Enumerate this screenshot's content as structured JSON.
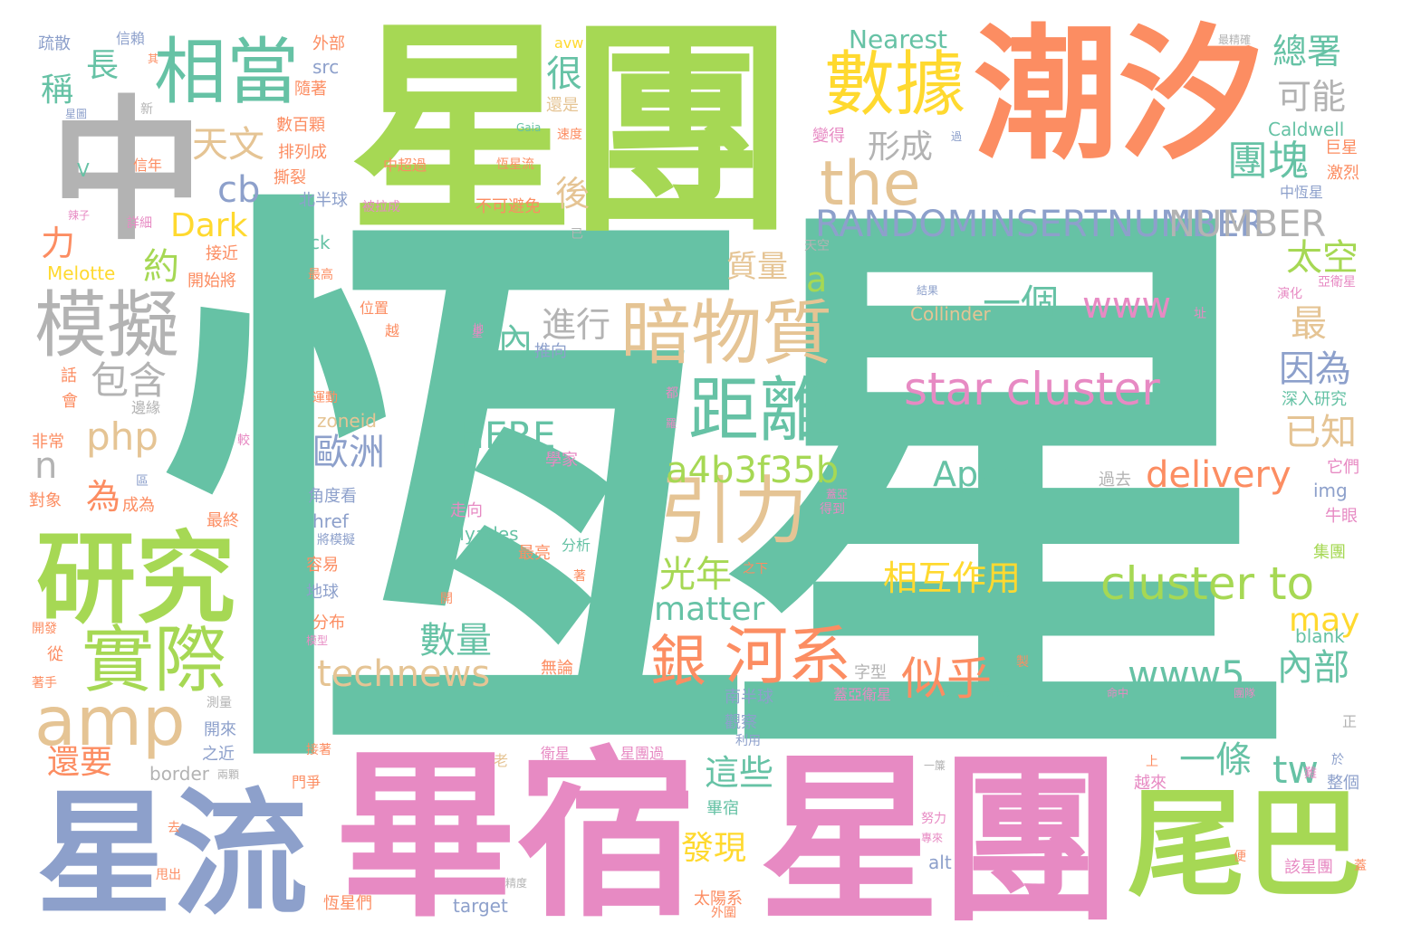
{
  "palette": {
    "teal": "#66c2a5",
    "orange": "#fc8d62",
    "blue": "#8da0cb",
    "pink": "#e78ac3",
    "green": "#a6d854",
    "yellow": "#ffd92f",
    "tan": "#e5c494",
    "gray": "#b3b3b3"
  },
  "words": {
    "w001": "恆星",
    "w002": "星團",
    "w003": "星團",
    "w004": "潮汐",
    "w005": "畢宿",
    "w006": "星流",
    "w007": "尾巴",
    "w008": "中",
    "w009": "研究",
    "w010": "相當",
    "w011": "數據",
    "w012": "模擬",
    "w013": "暗物質",
    "w014": "引力",
    "w015": "距離",
    "w016": "實際",
    "w017": "amp",
    "w018": "the",
    "w019": "RANDOMINSERTNUMBER",
    "w020": "star cluster",
    "w021": "cluster to",
    "w022": "銀",
    "w023": "河系",
    "w024": "technews",
    "w025": "www5",
    "w026": "delivery",
    "w027": "a4b3f35b",
    "w028": "www",
    "w029": "Apart",
    "w030": "HERE",
    "w031": "matter",
    "w032": "似乎",
    "w033": "一條",
    "w034": "一個",
    "w035": "光年",
    "w036": "相互作用",
    "w037": "數量",
    "w038": "歐洲",
    "w039": "內部",
    "w040": "因為",
    "w041": "已知",
    "w042": "團塊",
    "w043": "太空",
    "w044": "最",
    "w045": "可能",
    "w046": "總署",
    "w047": "質量",
    "w048": "進行",
    "w049": "內",
    "w050": "形成",
    "w051": "後",
    "w052": "很",
    "w053": "天文",
    "w054": "包含",
    "w055": "php",
    "w056": "cb",
    "w057": "Dark",
    "w058": "約",
    "w059": "為",
    "w060": "n",
    "w061": "力",
    "w062": "稱",
    "w063": "長",
    "w064": "這些",
    "w065": "發現",
    "w066": "tw",
    "w067": "may",
    "w068": "a",
    "w069": "NUMBER",
    "w070": "Nearest",
    "w071": "Collinder",
    "w072": "Caldwell",
    "w073": "Melotte",
    "w074": "Hyades",
    "w075": "zoneid",
    "w076": "href",
    "w077": "border",
    "w078": "target",
    "w079": "alt",
    "w080": "blank",
    "w081": "img",
    "w082": "src",
    "w083": "ck",
    "w084": "avw",
    "w085": "Gaia",
    "w086": "V",
    "w087": "疏散",
    "w088": "信賴",
    "w089": "外部",
    "w090": "隨著",
    "w091": "數百顆",
    "w092": "排列成",
    "w093": "撕裂",
    "w094": "北半球",
    "w095": "接近",
    "w096": "開始將",
    "w097": "最高",
    "w098": "位置",
    "w099": "推向",
    "w100": "不可避免",
    "w101": "中超過",
    "w102": "被拉成",
    "w103": "還是",
    "w104": "速度",
    "w105": "變得",
    "w106": "巨星",
    "w107": "激烈",
    "w108": "中恆星",
    "w109": "亞衛星",
    "w110": "最精確",
    "w111": "結果",
    "w112": "演化",
    "w113": "址",
    "w114": "深入研究",
    "w115": "它們",
    "w116": "牛眼",
    "w117": "集團",
    "w118": "過去",
    "w119": "學家",
    "w120": "分析",
    "w121": "走向",
    "w122": "角度看",
    "w123": "將模擬",
    "w124": "容易",
    "w125": "地球",
    "w126": "分布",
    "w127": "模型",
    "w128": "最亮",
    "w129": "之下",
    "w130": "無論",
    "w131": "字型",
    "w132": "密集",
    "w133": "南半球",
    "w134": "觀察",
    "w135": "利用",
    "w136": "畢宿",
    "w137": "太陽系",
    "w138": "外圍",
    "w139": "恆星們",
    "w140": "該星團",
    "w141": "越來",
    "w142": "整個",
    "w143": "於",
    "w144": "努力",
    "w145": "團隊",
    "w146": "命中",
    "w147": "蓋亞衛星",
    "w148": "星團過",
    "w149": "衛星",
    "w150": "老",
    "w151": "之近",
    "w152": "開來",
    "w153": "還要",
    "w154": "最終",
    "w155": "成為",
    "w156": "對象",
    "w157": "非常",
    "w158": "邊緣",
    "w159": "會",
    "w160": "話",
    "w161": "運動",
    "w162": "越",
    "w163": "星圖",
    "w164": "新",
    "w165": "信年",
    "w166": "詳細",
    "w167": "辣子",
    "w168": "其",
    "w169": "已",
    "w170": "天空",
    "w171": "都",
    "w172": "羅",
    "w173": "星",
    "w174": "蓋亞",
    "w175": "得到",
    "w176": "較",
    "w177": "區",
    "w178": "著",
    "w179": "開",
    "w180": "從",
    "w181": "開發",
    "w182": "著手",
    "w183": "測量",
    "w184": "接著",
    "w185": "兩顆",
    "w186": "門爭",
    "w187": "精度",
    "w188": "甩出",
    "w189": "去",
    "w190": "一簾",
    "w191": "專來",
    "w192": "正",
    "w193": "便",
    "w194": "蓋",
    "w195": "難",
    "w196": "上",
    "w197": "製",
    "w198": "過",
    "w199": "恆星流",
    "w200": "地"
  }
}
